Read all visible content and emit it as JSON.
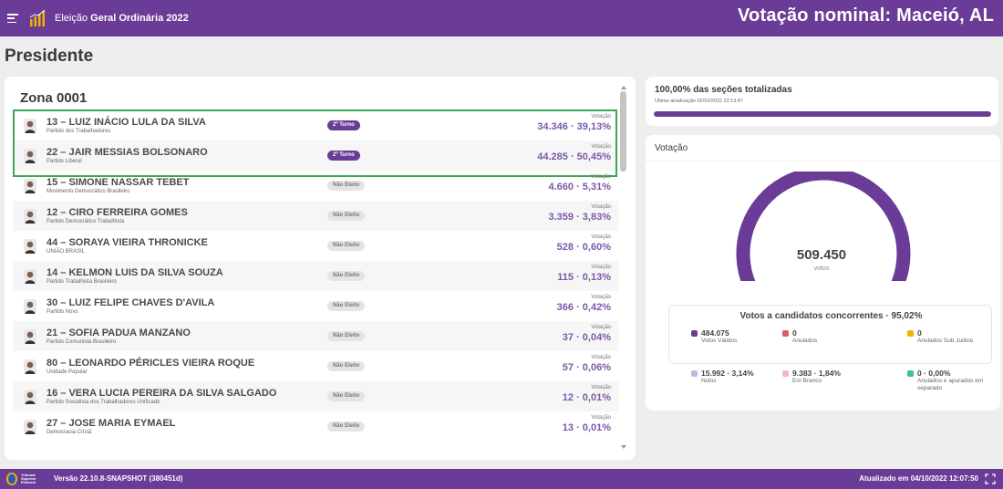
{
  "header": {
    "election_prefix": "Eleição",
    "election_name": "Geral Ordinária 2022",
    "title": "Votação nominal: Maceió, AL"
  },
  "office": "Presidente",
  "zone": "Zona 0001",
  "candidates": [
    {
      "name": "13 – LUIZ INÁCIO LULA DA SILVA",
      "party": "Partido dos Trabalhadores",
      "status": "2º Turno",
      "elected": true,
      "votes_label": "Votação",
      "votes": "34.346 · 39,13%"
    },
    {
      "name": "22 – JAIR MESSIAS BOLSONARO",
      "party": "Partido Liberal",
      "status": "2º Turno",
      "elected": true,
      "votes_label": "Votação",
      "votes": "44.285 · 50,45%"
    },
    {
      "name": "15 – SIMONE NASSAR TEBET",
      "party": "Movimento Democrático Brasileiro",
      "status": "Não Eleito",
      "elected": false,
      "votes_label": "Votação",
      "votes": "4.660 · 5,31%"
    },
    {
      "name": "12 – CIRO FERREIRA GOMES",
      "party": "Partido Democrático Trabalhista",
      "status": "Não Eleito",
      "elected": false,
      "votes_label": "Votação",
      "votes": "3.359 · 3,83%"
    },
    {
      "name": "44 – SORAYA VIEIRA THRONICKE",
      "party": "UNIÃO BRASIL",
      "status": "Não Eleito",
      "elected": false,
      "votes_label": "Votação",
      "votes": "528 · 0,60%"
    },
    {
      "name": "14 – KELMON LUIS DA SILVA SOUZA",
      "party": "Partido Trabalhista Brasileiro",
      "status": "Não Eleito",
      "elected": false,
      "votes_label": "Votação",
      "votes": "115 · 0,13%"
    },
    {
      "name": "30 – LUIZ FELIPE CHAVES D'AVILA",
      "party": "Partido Novo",
      "status": "Não Eleito",
      "elected": false,
      "votes_label": "Votação",
      "votes": "366 · 0,42%"
    },
    {
      "name": "21 – SOFIA PADUA MANZANO",
      "party": "Partido Comunista Brasileiro",
      "status": "Não Eleito",
      "elected": false,
      "votes_label": "Votação",
      "votes": "37 · 0,04%"
    },
    {
      "name": "80 – LEONARDO PÉRICLES VIEIRA ROQUE",
      "party": "Unidade Popular",
      "status": "Não Eleito",
      "elected": false,
      "votes_label": "Votação",
      "votes": "57 · 0,06%"
    },
    {
      "name": "16 – VERA LUCIA PEREIRA DA SILVA SALGADO",
      "party": "Partido Socialista dos Trabalhadores Unificado",
      "status": "Não Eleito",
      "elected": false,
      "votes_label": "Votação",
      "votes": "12 · 0,01%"
    },
    {
      "name": "27 – JOSE MARIA EYMAEL",
      "party": "Democracia Cristã",
      "status": "Não Eleito",
      "elected": false,
      "votes_label": "Votação",
      "votes": "13 · 0,01%"
    }
  ],
  "sections": {
    "title": "100,00% das seções totalizadas",
    "updated": "Última atualização 02/10/2022 22:13:47",
    "progress_fraction": 1.0
  },
  "vote": {
    "title": "Votação",
    "total": "509.450",
    "unit": "votos",
    "gauge_fractions": {
      "valid": 0.95,
      "null": 0.031,
      "blank": 0.019
    },
    "breakdown_title": "Votos a candidatos concorrentes · 95,02%",
    "items": [
      {
        "value": "484.075",
        "label": "Votos Válidos",
        "color": "#6a3c97"
      },
      {
        "value": "0",
        "label": "Anulados",
        "color": "#e05a6a"
      },
      {
        "value": "0",
        "label": "Anulados Sub Judice",
        "color": "#f0b400"
      },
      {
        "value": "15.992 · 3,14%",
        "label": "Nulos",
        "color": "#c8b4e0"
      },
      {
        "value": "9.383 · 1,84%",
        "label": "Em Branco",
        "color": "#f4b8c4"
      },
      {
        "value": "0 · 0,00%",
        "label": "Anulados e apurados em separado",
        "color": "#3fbf9f"
      }
    ]
  },
  "footer": {
    "tse_lines": [
      "Tribunal",
      "Superior",
      "Eleitoral"
    ],
    "version": "Versão 22.10.8-SNAPSHOT (380451d)",
    "updated": "Atualizado em 04/10/2022 12:07:50"
  },
  "colors": {
    "brand": "#6a3c97",
    "highlight": "#3fa553"
  },
  "icons": [
    "menu-icon",
    "bar-chart-logo-icon",
    "candidate-photo-icon",
    "tse-logo-icon",
    "fullscreen-icon"
  ]
}
